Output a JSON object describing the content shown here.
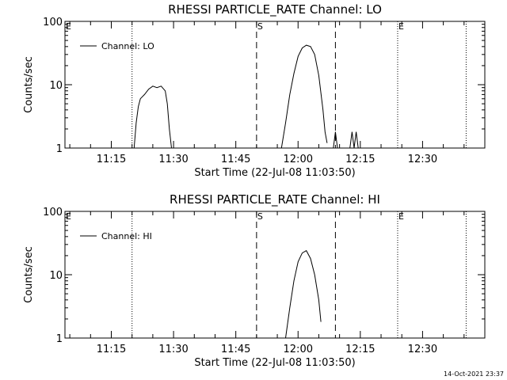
{
  "footer": {
    "timestamp": "14-Oct-2021 23:37"
  },
  "chart_data": [
    {
      "type": "line",
      "title": "RHESSI PARTICLE_RATE Channel: LO",
      "xlabel": "Start Time (22-Jul-08 11:03:50)",
      "ylabel": "Counts/sec",
      "yscale": "log",
      "ylim": [
        1,
        100
      ],
      "yticks": [
        {
          "value": 1,
          "label": "1"
        },
        {
          "value": 10,
          "label": "10"
        },
        {
          "value": 100,
          "label": "100"
        }
      ],
      "xlim": [
        "11:03:50",
        "12:45:00"
      ],
      "xticks": [
        "11:15",
        "11:30",
        "11:45",
        "12:00",
        "12:15",
        "12:30"
      ],
      "legend": {
        "position": "top-left"
      },
      "markers": [
        {
          "time": "11:03:50",
          "label": "E",
          "style": "dotted"
        },
        {
          "time": "11:20:00",
          "label": "",
          "style": "dotted"
        },
        {
          "time": "11:50:00",
          "label": "S",
          "style": "dashed"
        },
        {
          "time": "12:09:00",
          "label": "",
          "style": "dashed"
        },
        {
          "time": "12:24:00",
          "label": "E",
          "style": "dotted"
        },
        {
          "time": "12:40:30",
          "label": "",
          "style": "dotted"
        }
      ],
      "series": [
        {
          "name": "Channel: LO",
          "segments": [
            [
              [
                "11:20:30",
                1
              ],
              [
                "11:21:00",
                2.5
              ],
              [
                "11:21:30",
                4.5
              ],
              [
                "11:22:00",
                6
              ],
              [
                "11:23:00",
                7
              ],
              [
                "11:24:00",
                8.5
              ],
              [
                "11:25:00",
                9.5
              ],
              [
                "11:26:00",
                9
              ],
              [
                "11:27:00",
                9.5
              ],
              [
                "11:28:00",
                8
              ],
              [
                "11:28:30",
                5
              ],
              [
                "11:29:00",
                2
              ],
              [
                "11:29:30",
                1
              ]
            ],
            [
              [
                "11:56:00",
                1
              ],
              [
                "11:57:00",
                2.5
              ],
              [
                "11:58:00",
                7
              ],
              [
                "11:59:00",
                15
              ],
              [
                "12:00:00",
                28
              ],
              [
                "12:01:00",
                38
              ],
              [
                "12:02:00",
                42
              ],
              [
                "12:03:00",
                40
              ],
              [
                "12:04:00",
                30
              ],
              [
                "12:05:00",
                14
              ],
              [
                "12:06:00",
                4
              ],
              [
                "12:06:30",
                1.8
              ],
              [
                "12:07:00",
                1.2
              ]
            ],
            [
              [
                "12:08:30",
                1
              ],
              [
                "12:09:00",
                1.8
              ],
              [
                "12:09:30",
                1
              ]
            ],
            [
              [
                "12:12:30",
                1
              ],
              [
                "12:13:00",
                1.8
              ],
              [
                "12:13:30",
                1
              ],
              [
                "12:14:00",
                1.8
              ],
              [
                "12:14:30",
                1
              ]
            ]
          ]
        }
      ]
    },
    {
      "type": "line",
      "title": "RHESSI PARTICLE_RATE Channel: HI",
      "xlabel": "Start Time (22-Jul-08 11:03:50)",
      "ylabel": "Counts/sec",
      "yscale": "log",
      "ylim": [
        1,
        100
      ],
      "yticks": [
        {
          "value": 1,
          "label": "1"
        },
        {
          "value": 10,
          "label": "10"
        },
        {
          "value": 100,
          "label": "100"
        }
      ],
      "xlim": [
        "11:03:50",
        "12:45:00"
      ],
      "xticks": [
        "11:15",
        "11:30",
        "11:45",
        "12:00",
        "12:15",
        "12:30"
      ],
      "legend": {
        "position": "top-left"
      },
      "markers": [
        {
          "time": "11:03:50",
          "label": "E",
          "style": "dotted"
        },
        {
          "time": "11:20:00",
          "label": "",
          "style": "dotted"
        },
        {
          "time": "11:50:00",
          "label": "S",
          "style": "dashed"
        },
        {
          "time": "12:09:00",
          "label": "",
          "style": "dashed"
        },
        {
          "time": "12:24:00",
          "label": "E",
          "style": "dotted"
        },
        {
          "time": "12:40:30",
          "label": "",
          "style": "dotted"
        }
      ],
      "series": [
        {
          "name": "Channel: HI",
          "segments": [
            [
              [
                "11:57:00",
                1
              ],
              [
                "11:58:00",
                3
              ],
              [
                "11:59:00",
                8
              ],
              [
                "12:00:00",
                16
              ],
              [
                "12:01:00",
                22
              ],
              [
                "12:02:00",
                24
              ],
              [
                "12:03:00",
                18
              ],
              [
                "12:04:00",
                10
              ],
              [
                "12:05:00",
                4
              ],
              [
                "12:05:30",
                1.8
              ]
            ]
          ]
        }
      ]
    }
  ]
}
